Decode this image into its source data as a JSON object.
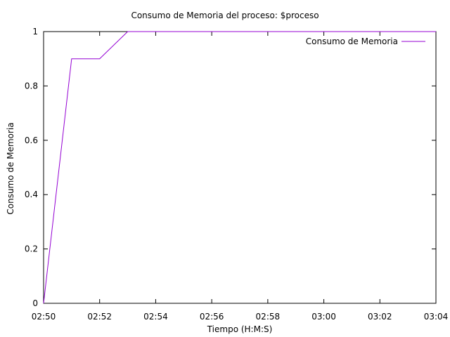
{
  "chart_data": {
    "type": "line",
    "title": "Consumo de Memoria del proceso: $proceso",
    "xlabel": "Tiempo (H:M:S)",
    "ylabel": "Consumo de Memoria",
    "xlim": [
      "02:50",
      "03:04"
    ],
    "ylim": [
      0,
      1
    ],
    "xticks": [
      "02:50",
      "02:52",
      "02:54",
      "02:56",
      "02:58",
      "03:00",
      "03:02",
      "03:04"
    ],
    "yticks": [
      "0",
      "0.2",
      "0.4",
      "0.6",
      "0.8",
      "1"
    ],
    "legend_position": "top-right",
    "grid": false,
    "series": [
      {
        "name": "Consumo de Memoria",
        "color": "#9400d3",
        "x": [
          "02:50",
          "02:51",
          "02:52",
          "02:53",
          "03:04"
        ],
        "y": [
          0,
          0.9,
          0.9,
          1,
          1
        ]
      }
    ]
  }
}
